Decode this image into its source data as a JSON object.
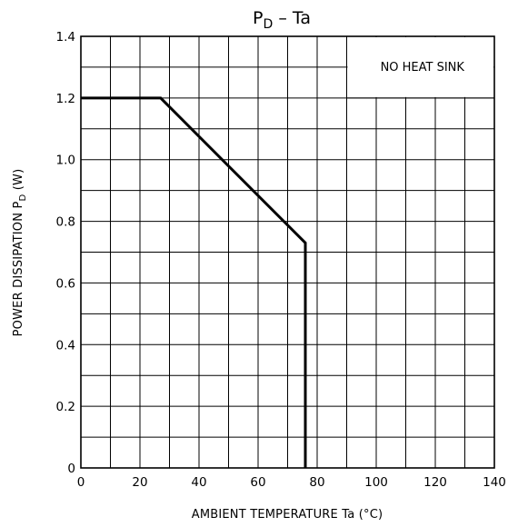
{
  "chart_data": {
    "type": "line",
    "title": {
      "main": "P",
      "sub": "D",
      "rest": "  –  Ta"
    },
    "xlabel": "AMBIENT TEMPERATURE    Ta    (°C)",
    "ylabel": {
      "main": "POWER DISSIPATION    P",
      "sub": "D",
      "rest": "    (W)"
    },
    "xlim": [
      0,
      140
    ],
    "ylim": [
      0,
      1.4
    ],
    "x_ticks": [
      0,
      20,
      40,
      60,
      80,
      100,
      120,
      140
    ],
    "x_tick_labels": [
      "0",
      "20",
      "40",
      "60",
      "80",
      "100",
      "120",
      "140"
    ],
    "y_ticks": [
      0,
      0.2,
      0.4,
      0.6,
      0.8,
      1.0,
      1.2,
      1.4
    ],
    "y_tick_labels": [
      "0",
      "0.2",
      "0.4",
      "0.6",
      "0.8",
      "1.0",
      "1.2",
      "1.4"
    ],
    "grid": {
      "x_step": 10,
      "y_step": 0.1,
      "on": true
    },
    "annotation": "NO HEAT SINK",
    "series": [
      {
        "x": [
          0,
          27,
          76,
          76
        ],
        "y": [
          1.2,
          1.2,
          0.73,
          0
        ]
      }
    ]
  }
}
